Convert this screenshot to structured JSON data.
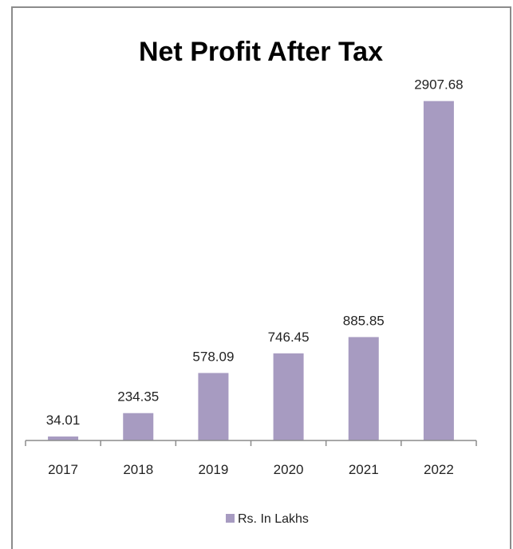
{
  "chart_data": {
    "type": "bar",
    "title": "Net Profit After Tax",
    "categories": [
      "2017",
      "2018",
      "2019",
      "2020",
      "2021",
      "2022"
    ],
    "series": [
      {
        "name": "Rs. In Lakhs",
        "values": [
          34.01,
          234.35,
          578.09,
          746.45,
          885.85,
          2907.68
        ],
        "data_labels": [
          "34.01",
          "234.35",
          "578.09",
          "746.45",
          "885.85",
          "2907.68"
        ]
      }
    ],
    "color": "#a79bc1",
    "ylim": [
      0,
      3500
    ],
    "grid": false,
    "legend": "bottom"
  }
}
